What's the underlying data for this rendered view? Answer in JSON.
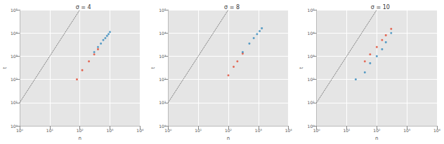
{
  "chart_data": [
    {
      "type": "scatter",
      "title": "σ = 4",
      "x_label": "n",
      "y_label": "t",
      "log": true,
      "grid": true,
      "xlim": [
        1,
        10000
      ],
      "ylim": [
        1,
        100000
      ],
      "xticks": [
        {
          "value": 1,
          "label": "10⁰"
        },
        {
          "value": 10,
          "label": "10¹"
        },
        {
          "value": 100,
          "label": "10²"
        },
        {
          "value": 1000,
          "label": "10³"
        },
        {
          "value": 10000,
          "label": "10⁴"
        }
      ],
      "yticks": [
        {
          "value": 1,
          "label": "10⁰"
        },
        {
          "value": 10,
          "label": "10¹"
        },
        {
          "value": 100,
          "label": "10²"
        },
        {
          "value": 1000,
          "label": "10³"
        },
        {
          "value": 10000,
          "label": "10⁴"
        },
        {
          "value": 100000,
          "label": "10⁵"
        }
      ],
      "series": [
        {
          "type": "line",
          "line_style": "dotted",
          "color": "#555555",
          "x": [
            1,
            100
          ],
          "values": [
            10,
            100000
          ]
        },
        {
          "type": "scatter",
          "color": "#e24a33",
          "x": [
            80,
            120,
            200,
            300,
            400
          ],
          "values": [
            100,
            250,
            600,
            1200,
            2000
          ]
        },
        {
          "type": "scatter",
          "color": "#348abd",
          "x": [
            300,
            400,
            500,
            600,
            700,
            800,
            900,
            1000
          ],
          "values": [
            1500,
            2500,
            3500,
            5000,
            6000,
            7500,
            9000,
            11000
          ]
        }
      ]
    },
    {
      "type": "scatter",
      "title": "σ = 8",
      "x_label": "n",
      "y_label": "t",
      "log": true,
      "grid": true,
      "xlim": [
        1,
        10000
      ],
      "ylim": [
        1,
        100000
      ],
      "xticks": [
        {
          "value": 1,
          "label": "10⁰"
        },
        {
          "value": 10,
          "label": "10¹"
        },
        {
          "value": 100,
          "label": "10²"
        },
        {
          "value": 1000,
          "label": "10³"
        },
        {
          "value": 10000,
          "label": "10⁴"
        }
      ],
      "yticks": [
        {
          "value": 1,
          "label": "10⁰"
        },
        {
          "value": 10,
          "label": "10¹"
        },
        {
          "value": 100,
          "label": "10²"
        },
        {
          "value": 1000,
          "label": "10³"
        },
        {
          "value": 10000,
          "label": "10⁴"
        },
        {
          "value": 100000,
          "label": "10⁵"
        }
      ],
      "series": [
        {
          "type": "line",
          "line_style": "dotted",
          "color": "#555555",
          "x": [
            1,
            100
          ],
          "values": [
            10,
            100000
          ]
        },
        {
          "type": "scatter",
          "color": "#e24a33",
          "x": [
            100,
            150,
            200,
            300
          ],
          "values": [
            150,
            350,
            600,
            1300
          ]
        },
        {
          "type": "scatter",
          "color": "#348abd",
          "x": [
            300,
            500,
            700,
            900,
            1100,
            1300
          ],
          "values": [
            1500,
            3500,
            6000,
            9000,
            12000,
            16000
          ]
        }
      ]
    },
    {
      "type": "scatter",
      "title": "σ = 10",
      "x_label": "n",
      "y_label": "t",
      "log": true,
      "grid": true,
      "xlim": [
        1,
        10000
      ],
      "ylim": [
        1,
        100000
      ],
      "xticks": [
        {
          "value": 1,
          "label": "10⁰"
        },
        {
          "value": 10,
          "label": "10¹"
        },
        {
          "value": 100,
          "label": "10²"
        },
        {
          "value": 1000,
          "label": "10³"
        },
        {
          "value": 10000,
          "label": "10⁴"
        }
      ],
      "yticks": [
        {
          "value": 1,
          "label": "10⁰"
        },
        {
          "value": 10,
          "label": "10¹"
        },
        {
          "value": 100,
          "label": "10²"
        },
        {
          "value": 1000,
          "label": "10³"
        },
        {
          "value": 10000,
          "label": "10⁴"
        },
        {
          "value": 100000,
          "label": "10⁵"
        }
      ],
      "series": [
        {
          "type": "line",
          "line_style": "dotted",
          "color": "#555555",
          "x": [
            1,
            100
          ],
          "values": [
            10,
            100000
          ]
        },
        {
          "type": "scatter",
          "color": "#e24a33",
          "x": [
            40,
            60,
            100,
            150,
            200,
            300
          ],
          "values": [
            600,
            1200,
            2500,
            5000,
            8000,
            15000
          ]
        },
        {
          "type": "scatter",
          "color": "#348abd",
          "x": [
            20,
            40,
            60,
            100,
            150,
            200,
            300
          ],
          "values": [
            100,
            200,
            500,
            1000,
            2000,
            4000,
            10000
          ]
        }
      ]
    }
  ]
}
